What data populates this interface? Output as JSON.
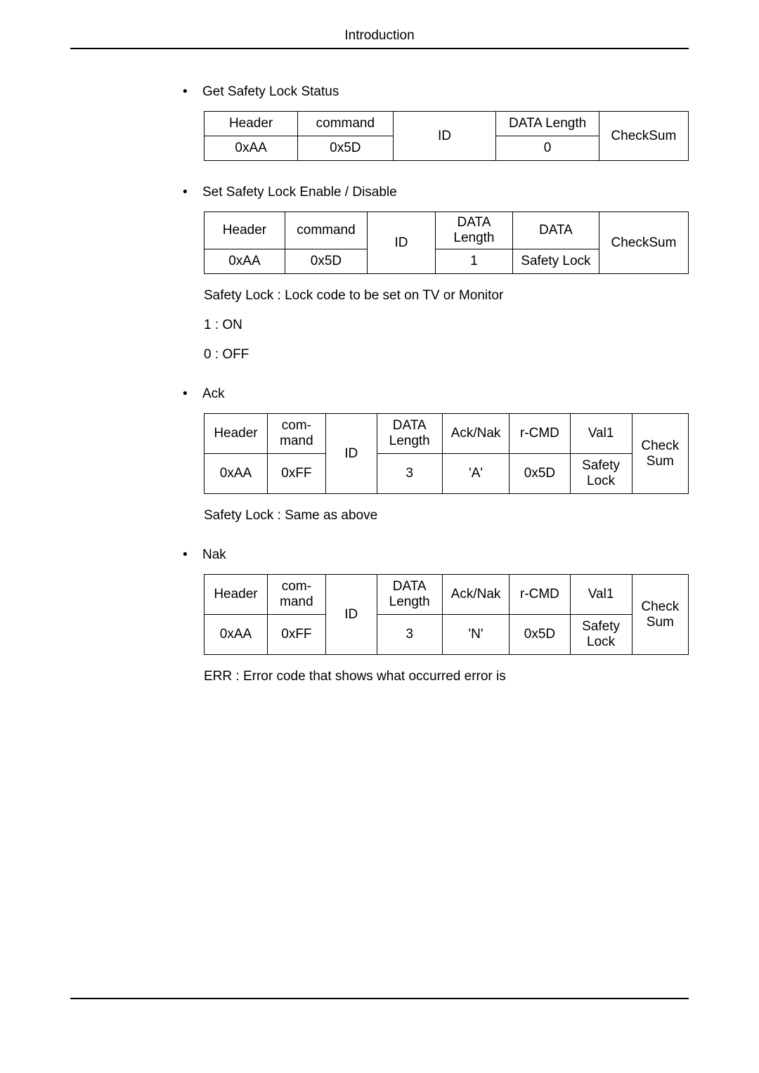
{
  "header": {
    "title": "Introduction"
  },
  "sections": {
    "get": {
      "title": "Get Safety Lock Status",
      "cols": [
        "Header",
        "command",
        "ID",
        "DATA Length",
        "CheckSum"
      ],
      "row": [
        "0xAA",
        "0x5D",
        "",
        "0",
        ""
      ]
    },
    "set": {
      "title": "Set Safety Lock Enable / Disable",
      "cols": [
        "Header",
        "command",
        "ID",
        "DATA Length",
        "DATA",
        "CheckSum"
      ],
      "row": [
        "0xAA",
        "0x5D",
        "",
        "1",
        "Safety Lock",
        ""
      ],
      "notes": {
        "desc": "Safety Lock : Lock code to be set on TV or Monitor",
        "v1": "1 : ON",
        "v0": "0 : OFF"
      }
    },
    "ack": {
      "title": "Ack",
      "cols": [
        "Header",
        "com-mand",
        "ID",
        "DATA Length",
        "Ack/Nak",
        "r-CMD",
        "Val1",
        "Check Sum"
      ],
      "row": [
        "0xAA",
        "0xFF",
        "",
        "3",
        "'A'",
        "0x5D",
        "Safety Lock",
        ""
      ],
      "note": "Safety Lock : Same as above"
    },
    "nak": {
      "title": "Nak",
      "cols": [
        "Header",
        "com-mand",
        "ID",
        "DATA Length",
        "Ack/Nak",
        "r-CMD",
        "Val1",
        "Check Sum"
      ],
      "row": [
        "0xAA",
        "0xFF",
        "",
        "3",
        "'N'",
        "0x5D",
        "Safety Lock",
        ""
      ],
      "note": "ERR : Error code that shows what occurred error is"
    }
  }
}
